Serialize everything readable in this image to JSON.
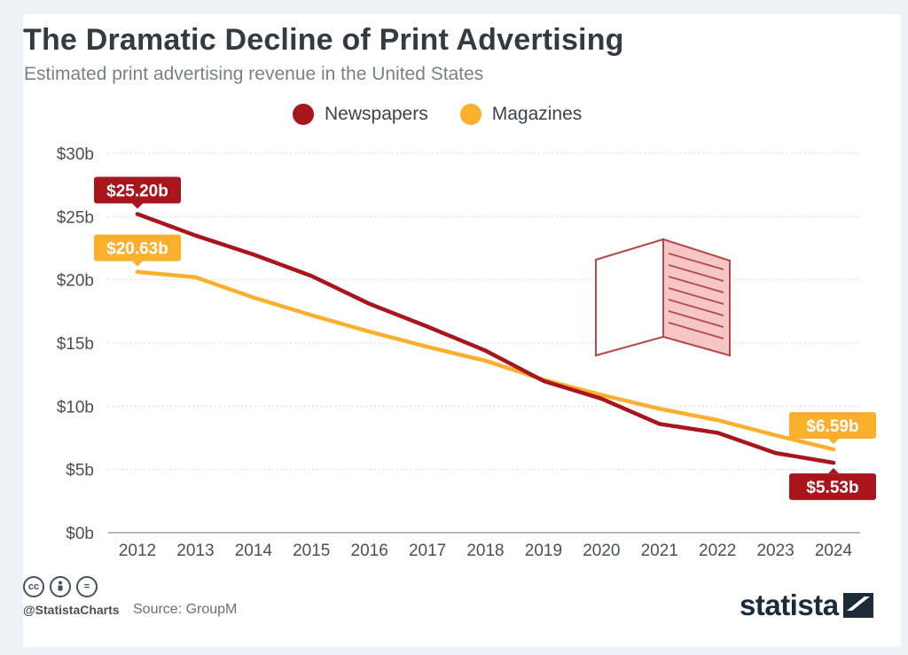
{
  "header": {
    "title": "The Dramatic Decline of Print Advertising",
    "subtitle": "Estimated print advertising revenue in the United States"
  },
  "footer": {
    "handle": "@StatistaCharts",
    "source": "Source: GroupM",
    "brand": "statista",
    "license_icons": [
      "cc-icon",
      "by-icon",
      "nd-icon"
    ],
    "license_glyphs": [
      "cc",
      "",
      "="
    ]
  },
  "colors": {
    "newspapers": "#a8151c",
    "magazines": "#fbb02d",
    "grid": "#d6d9dd",
    "axis_text": "#4a4f57"
  },
  "chart_data": {
    "type": "line",
    "x": [
      "2012",
      "2013",
      "2014",
      "2015",
      "2016",
      "2017",
      "2018",
      "2019",
      "2020",
      "2021",
      "2022",
      "2023",
      "2024"
    ],
    "y_ticks": [
      "$0b",
      "$5b",
      "$10b",
      "$15b",
      "$20b",
      "$25b",
      "$30b"
    ],
    "ylim": [
      0,
      30
    ],
    "grid": true,
    "legend_position": "top-center",
    "series": [
      {
        "name": "Newspapers",
        "color": "#a8151c",
        "values": [
          25.2,
          23.5,
          22.0,
          20.3,
          18.1,
          16.3,
          14.4,
          12.0,
          10.6,
          8.6,
          7.9,
          6.3,
          5.53
        ],
        "labels": [
          {
            "index": 0,
            "text": "$25.20b",
            "placement": "above"
          },
          {
            "index": 12,
            "text": "$5.53b",
            "placement": "below"
          }
        ]
      },
      {
        "name": "Magazines",
        "color": "#fbb02d",
        "values": [
          20.63,
          20.2,
          18.6,
          17.2,
          15.9,
          14.7,
          13.6,
          12.1,
          10.9,
          9.8,
          8.9,
          7.7,
          6.59
        ],
        "labels": [
          {
            "index": 0,
            "text": "$20.63b",
            "placement": "above"
          },
          {
            "index": 12,
            "text": "$6.59b",
            "placement": "above"
          }
        ]
      }
    ]
  }
}
